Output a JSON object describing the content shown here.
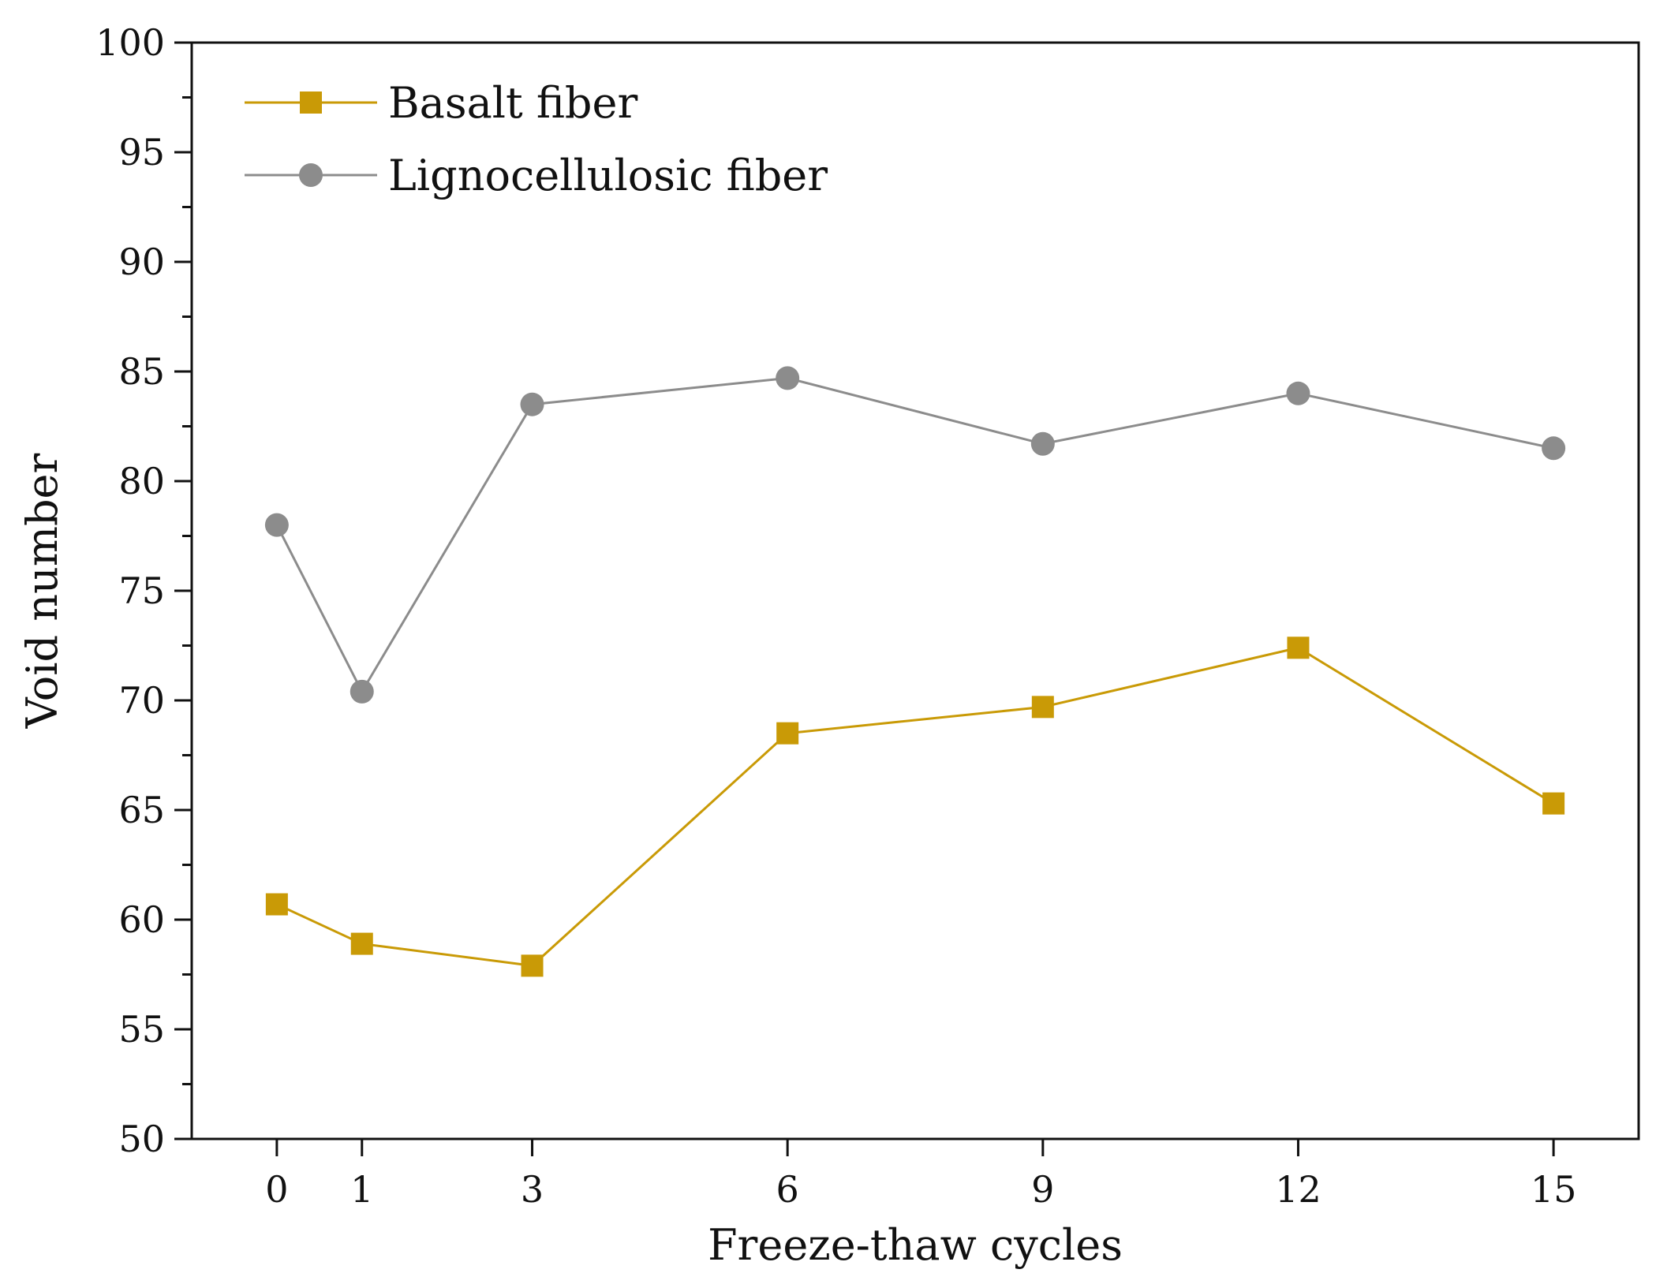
{
  "chart_data": {
    "type": "line",
    "title": "",
    "xlabel": "Freeze-thaw cycles",
    "ylabel": "Void number",
    "x": [
      0,
      1,
      3,
      6,
      9,
      12,
      15
    ],
    "x_tick_labels": [
      "0",
      "1",
      "3",
      "6",
      "9",
      "12",
      "15"
    ],
    "xlim": [
      -1,
      16
    ],
    "ylim": [
      50,
      100
    ],
    "y_ticks": [
      50,
      55,
      60,
      65,
      70,
      75,
      80,
      85,
      90,
      95,
      100
    ],
    "y_tick_labels": [
      "50",
      "55",
      "60",
      "65",
      "70",
      "75",
      "80",
      "85",
      "90",
      "95",
      "100"
    ],
    "grid": false,
    "legend_position": "top-left",
    "series": [
      {
        "name": "Basalt fiber",
        "marker": "square",
        "color": "#C99A06",
        "values": [
          60.7,
          58.9,
          57.9,
          68.5,
          69.7,
          72.4,
          65.3
        ]
      },
      {
        "name": "Lignocellulosic fiber",
        "marker": "circle",
        "color": "#8C8C8C",
        "values": [
          78.0,
          70.4,
          83.5,
          84.7,
          81.7,
          84.0,
          81.5
        ]
      }
    ]
  }
}
